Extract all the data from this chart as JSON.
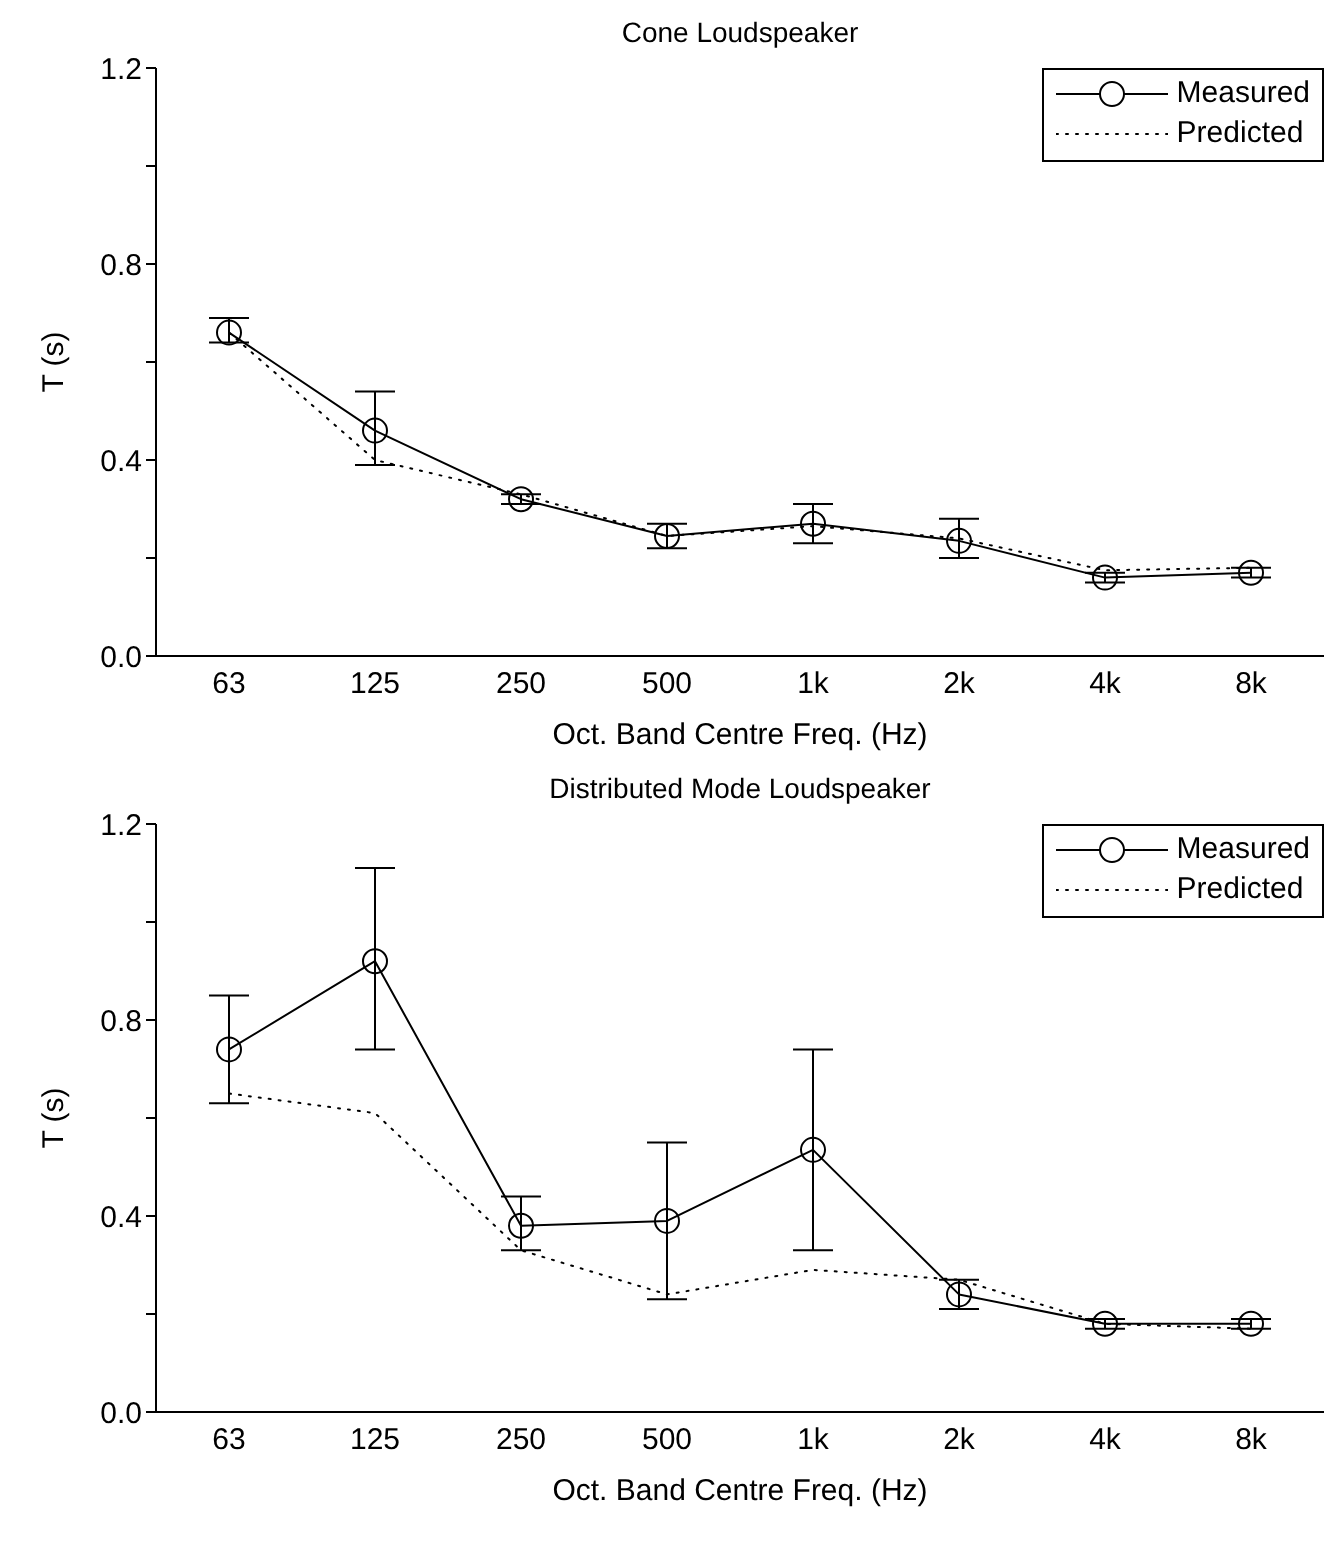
{
  "chart_data": [
    {
      "type": "line",
      "title": "Cone Loudspeaker",
      "xlabel": "Oct. Band Centre Freq. (Hz)",
      "ylabel": "T (s)",
      "categories": [
        "63",
        "125",
        "250",
        "500",
        "1k",
        "2k",
        "4k",
        "8k"
      ],
      "series": [
        {
          "name": "Measured",
          "color": "#000000",
          "marker": "circle",
          "line_style": "solid",
          "values": [
            0.66,
            0.46,
            0.32,
            0.245,
            0.27,
            0.235,
            0.16,
            0.17
          ],
          "errors": [
            [
              0.64,
              0.69
            ],
            [
              0.39,
              0.54
            ],
            [
              0.31,
              0.33
            ],
            [
              0.22,
              0.27
            ],
            [
              0.23,
              0.31
            ],
            [
              0.2,
              0.28
            ],
            [
              0.15,
              0.17
            ],
            [
              0.16,
              0.18
            ]
          ]
        },
        {
          "name": "Predicted",
          "color": "#000000",
          "marker": "none",
          "line_style": "dotted",
          "values": [
            0.66,
            0.4,
            0.33,
            0.245,
            0.265,
            0.24,
            0.175,
            0.18
          ]
        }
      ],
      "ylim": [
        0,
        1.2
      ],
      "yticks": [
        {
          "value": 0,
          "label": "0.0"
        },
        {
          "value": 0.2,
          "label": null
        },
        0.4,
        {
          "value": 0.6,
          "label": null
        },
        0.8,
        {
          "value": 1.0,
          "label": null
        },
        1.2
      ],
      "grid": false,
      "legend": "top right"
    },
    {
      "type": "line",
      "title": "Distributed Mode Loudspeaker",
      "xlabel": "Oct. Band Centre Freq. (Hz)",
      "ylabel": "T (s)",
      "categories": [
        "63",
        "125",
        "250",
        "500",
        "1k",
        "2k",
        "4k",
        "8k"
      ],
      "series": [
        {
          "name": "Measured",
          "color": "#000000",
          "marker": "circle",
          "line_style": "solid",
          "values": [
            0.74,
            0.92,
            0.38,
            0.39,
            0.535,
            0.24,
            0.18,
            0.18
          ],
          "errors": [
            [
              0.63,
              0.85
            ],
            [
              0.74,
              1.11
            ],
            [
              0.33,
              0.44
            ],
            [
              0.23,
              0.55
            ],
            [
              0.33,
              0.74
            ],
            [
              0.21,
              0.27
            ],
            [
              0.17,
              0.19
            ],
            [
              0.17,
              0.19
            ]
          ]
        },
        {
          "name": "Predicted",
          "color": "#000000",
          "marker": "none",
          "line_style": "dotted",
          "values": [
            0.65,
            0.61,
            0.33,
            0.24,
            0.29,
            0.27,
            0.18,
            0.17
          ]
        }
      ],
      "ylim": [
        0,
        1.2
      ],
      "yticks": [
        {
          "value": 0,
          "label": "0.0"
        },
        {
          "value": 0.2,
          "label": null
        },
        0.4,
        {
          "value": 0.6,
          "label": null
        },
        0.8,
        {
          "value": 1.0,
          "label": null
        },
        1.2
      ],
      "grid": false,
      "legend": "top right"
    }
  ]
}
